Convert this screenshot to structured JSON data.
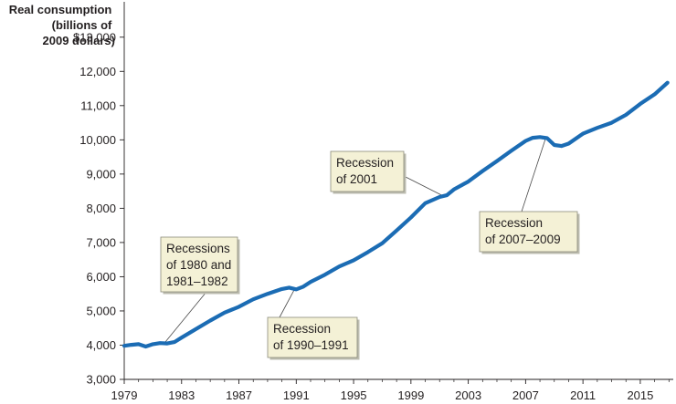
{
  "chart_data": {
    "type": "line",
    "ylabel_lines": [
      "Real consumption",
      "(billions of",
      "2009 dollars)"
    ],
    "xlabel": "",
    "xlim": [
      1979,
      2017.3
    ],
    "ylim": [
      3000,
      13500
    ],
    "x_tick_labels": [
      "1979",
      "1983",
      "1987",
      "1991",
      "1995",
      "1999",
      "2003",
      "2007",
      "2011",
      "2015"
    ],
    "x_ticks": [
      1979,
      1983,
      1987,
      1991,
      1995,
      1999,
      2003,
      2007,
      2011,
      2015
    ],
    "y_ticks": [
      3000,
      4000,
      5000,
      6000,
      7000,
      8000,
      9000,
      10000,
      11000,
      12000,
      13000
    ],
    "y_tick_labels": [
      "3,000",
      "4,000",
      "5,000",
      "6,000",
      "7,000",
      "8,000",
      "9,000",
      "10,000",
      "11,000",
      "12,000",
      "$13,000"
    ],
    "series": [
      {
        "color": "#1b6cb4",
        "x": [
          1979,
          1979.5,
          1980,
          1980.5,
          1981,
          1981.5,
          1982,
          1982.5,
          1983,
          1984,
          1985,
          1986,
          1987,
          1988,
          1989,
          1990,
          1990.5,
          1991,
          1991.5,
          1992,
          1993,
          1994,
          1995,
          1996,
          1997,
          1998,
          1999,
          2000,
          2001,
          2001.5,
          2002,
          2003,
          2004,
          2005,
          2006,
          2007,
          2007.5,
          2008,
          2008.5,
          2009,
          2009.5,
          2010,
          2011,
          2012,
          2013,
          2014,
          2015,
          2016,
          2016.9
        ],
        "y": [
          3980,
          4010,
          4030,
          3960,
          4030,
          4060,
          4050,
          4090,
          4220,
          4470,
          4720,
          4950,
          5120,
          5340,
          5500,
          5640,
          5680,
          5630,
          5710,
          5850,
          6060,
          6300,
          6480,
          6720,
          6980,
          7350,
          7730,
          8150,
          8330,
          8380,
          8550,
          8780,
          9090,
          9380,
          9680,
          9970,
          10060,
          10080,
          10050,
          9850,
          9820,
          9890,
          10180,
          10350,
          10500,
          10730,
          11050,
          11330,
          11670
        ]
      }
    ],
    "annotations": [
      {
        "lines": [
          "Recessions",
          "of 1980 and",
          "1981–1982"
        ],
        "x": 1981.8,
        "y": 4060
      },
      {
        "lines": [
          "Recession",
          "of 1990–1991"
        ],
        "x": 1990.9,
        "y": 5650
      },
      {
        "lines": [
          "Recession",
          "of 2001"
        ],
        "x": 2001.3,
        "y": 8350
      },
      {
        "lines": [
          "Recession",
          "of 2007–2009"
        ],
        "x": 2008.4,
        "y": 10050
      }
    ],
    "grid": false
  }
}
